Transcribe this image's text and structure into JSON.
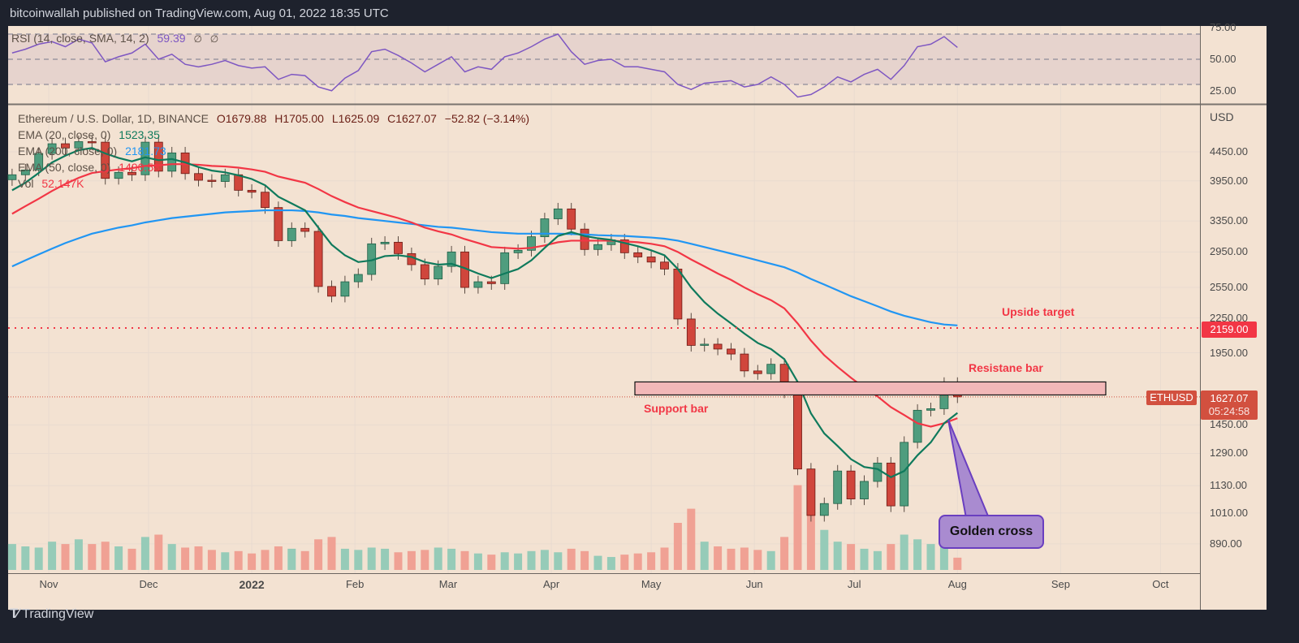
{
  "header": {
    "published": "bitcoinwallah published on TradingView.com, Aug 01, 2022 18:35 UTC"
  },
  "rsi_legend": {
    "label": "RSI (14, close, SMA, 14, 2)",
    "value": "59.39",
    "extra1": "∅",
    "extra2": "∅"
  },
  "legend": {
    "symbol": "Ethereum / U.S. Dollar, 1D, BINANCE",
    "open": "O1679.88",
    "high": "H1705.00",
    "low": "L1625.09",
    "close": "C1627.07",
    "change": "−52.82 (−3.14%)",
    "ema20_label": "EMA (20, close, 0)",
    "ema20_value": "1523.35",
    "ema200_label": "EMA (200, close, 0)",
    "ema200_value": "2181.73",
    "ema50_label": "EMA (50, close, 0)",
    "ema50_value": "1490.58",
    "vol_label": "Vol",
    "vol_value": "52.147K"
  },
  "price_axis": {
    "currency": "USD",
    "ticks": [
      "4450.00",
      "3950.00",
      "3350.00",
      "2950.00",
      "2550.00",
      "2250.00",
      "1950.00",
      "1450.00",
      "1290.00",
      "1130.00",
      "1010.00",
      "890.00"
    ]
  },
  "rsi_axis": {
    "ticks": [
      "75.00",
      "50.00",
      "25.00"
    ]
  },
  "time_axis": {
    "ticks": [
      {
        "label": "Nov",
        "date": "2021-11-01",
        "bold": false
      },
      {
        "label": "Dec",
        "date": "2021-12-01",
        "bold": false
      },
      {
        "label": "2022",
        "date": "2022-01-01",
        "bold": true
      },
      {
        "label": "Feb",
        "date": "2022-02-01",
        "bold": false
      },
      {
        "label": "Mar",
        "date": "2022-03-01",
        "bold": false
      },
      {
        "label": "Apr",
        "date": "2022-04-01",
        "bold": false
      },
      {
        "label": "May",
        "date": "2022-05-01",
        "bold": false
      },
      {
        "label": "Jun",
        "date": "2022-06-01",
        "bold": false
      },
      {
        "label": "Jul",
        "date": "2022-07-01",
        "bold": false
      },
      {
        "label": "Aug",
        "date": "2022-08-01",
        "bold": false
      },
      {
        "label": "Sep",
        "date": "2022-09-01",
        "bold": false
      },
      {
        "label": "Oct",
        "date": "2022-10-01",
        "bold": false
      }
    ]
  },
  "labels": {
    "target_price": "2159.00",
    "symbol_badge": "ETHUSD",
    "last_price": "1627.07",
    "countdown": "05:24:58"
  },
  "annotations": {
    "upside_target": "Upside target",
    "resistance": "Resistane bar",
    "support": "Support bar",
    "golden_cross": "Golden cross"
  },
  "logo": {
    "text": "TradingView"
  },
  "colors": {
    "up": "#4f9d7e",
    "down": "#d0463c",
    "ema20": "#0f7a5c",
    "ema50": "#f23645",
    "ema200": "#2196f3",
    "rsi": "#7e57c2",
    "background": "#f3e2d2",
    "frame": "#1e222d"
  },
  "chart_data": {
    "type": "candlestick",
    "title": "Ethereum / U.S. Dollar, 1D, BINANCE",
    "y_scale": "log",
    "ylim": [
      820,
      5200
    ],
    "xlim": [
      "2021-10-20",
      "2022-10-14"
    ],
    "grid": true,
    "target_line": 2159,
    "resistance_zone": [
      1640,
      1730
    ],
    "last_price_line": 1627.07,
    "dates": [
      "2021-10-21",
      "2021-10-25",
      "2021-10-29",
      "2021-11-02",
      "2021-11-06",
      "2021-11-10",
      "2021-11-14",
      "2021-11-18",
      "2021-11-22",
      "2021-11-26",
      "2021-11-30",
      "2021-12-04",
      "2021-12-08",
      "2021-12-12",
      "2021-12-16",
      "2021-12-20",
      "2021-12-24",
      "2021-12-28",
      "2022-01-01",
      "2022-01-05",
      "2022-01-09",
      "2022-01-13",
      "2022-01-17",
      "2022-01-21",
      "2022-01-25",
      "2022-01-29",
      "2022-02-02",
      "2022-02-06",
      "2022-02-10",
      "2022-02-14",
      "2022-02-18",
      "2022-02-22",
      "2022-02-26",
      "2022-03-02",
      "2022-03-06",
      "2022-03-10",
      "2022-03-14",
      "2022-03-18",
      "2022-03-22",
      "2022-03-26",
      "2022-03-30",
      "2022-04-03",
      "2022-04-07",
      "2022-04-11",
      "2022-04-15",
      "2022-04-19",
      "2022-04-23",
      "2022-04-27",
      "2022-05-01",
      "2022-05-05",
      "2022-05-09",
      "2022-05-13",
      "2022-05-17",
      "2022-05-21",
      "2022-05-25",
      "2022-05-29",
      "2022-06-02",
      "2022-06-06",
      "2022-06-10",
      "2022-06-14",
      "2022-06-18",
      "2022-06-22",
      "2022-06-26",
      "2022-06-30",
      "2022-07-04",
      "2022-07-08",
      "2022-07-12",
      "2022-07-16",
      "2022-07-20",
      "2022-07-24",
      "2022-07-28",
      "2022-08-01"
    ],
    "close": [
      4050,
      4130,
      4420,
      4600,
      4520,
      4640,
      4630,
      3990,
      4090,
      4050,
      4630,
      4110,
      4430,
      4070,
      3960,
      3940,
      4050,
      3800,
      3770,
      3540,
      3090,
      3250,
      3210,
      2560,
      2460,
      2610,
      2690,
      3050,
      3070,
      2930,
      2800,
      2640,
      2780,
      2950,
      2550,
      2610,
      2590,
      2940,
      2970,
      3140,
      3380,
      3520,
      3240,
      2980,
      3040,
      3100,
      2940,
      2890,
      2830,
      2750,
      2240,
      2010,
      2020,
      1980,
      1940,
      1810,
      1790,
      1860,
      1660,
      1210,
      1000,
      1050,
      1200,
      1070,
      1150,
      1240,
      1040,
      1350,
      1540,
      1550,
      1720,
      1627.07
    ],
    "volume_k": [
      110,
      100,
      95,
      120,
      110,
      130,
      110,
      120,
      100,
      90,
      140,
      150,
      110,
      95,
      100,
      85,
      75,
      80,
      70,
      85,
      100,
      90,
      80,
      130,
      140,
      90,
      85,
      95,
      90,
      75,
      80,
      85,
      95,
      90,
      80,
      70,
      65,
      75,
      70,
      80,
      85,
      75,
      90,
      80,
      60,
      55,
      65,
      70,
      75,
      95,
      200,
      260,
      120,
      100,
      90,
      95,
      85,
      80,
      140,
      360,
      300,
      170,
      120,
      110,
      90,
      80,
      110,
      150,
      130,
      110,
      100,
      52.147
    ],
    "ema20": [
      3800,
      3920,
      4080,
      4260,
      4380,
      4480,
      4520,
      4420,
      4340,
      4280,
      4350,
      4300,
      4320,
      4260,
      4180,
      4120,
      4090,
      4040,
      3980,
      3880,
      3700,
      3600,
      3500,
      3260,
      3040,
      2910,
      2830,
      2850,
      2900,
      2910,
      2890,
      2830,
      2800,
      2810,
      2760,
      2700,
      2650,
      2700,
      2750,
      2850,
      3000,
      3150,
      3200,
      3150,
      3120,
      3100,
      3060,
      3020,
      2970,
      2910,
      2750,
      2550,
      2400,
      2290,
      2200,
      2110,
      2030,
      1980,
      1900,
      1730,
      1520,
      1400,
      1330,
      1260,
      1220,
      1210,
      1170,
      1200,
      1280,
      1350,
      1460,
      1523.35
    ],
    "ema50": [
      3450,
      3560,
      3670,
      3790,
      3900,
      4000,
      4080,
      4110,
      4140,
      4160,
      4200,
      4210,
      4230,
      4230,
      4220,
      4200,
      4190,
      4170,
      4140,
      4100,
      4020,
      3970,
      3920,
      3820,
      3710,
      3620,
      3540,
      3490,
      3440,
      3390,
      3330,
      3260,
      3210,
      3170,
      3110,
      3060,
      3010,
      3000,
      2990,
      3000,
      3030,
      3070,
      3090,
      3090,
      3090,
      3090,
      3080,
      3070,
      3050,
      3020,
      2950,
      2860,
      2780,
      2700,
      2630,
      2550,
      2480,
      2420,
      2340,
      2200,
      2050,
      1930,
      1840,
      1760,
      1690,
      1630,
      1560,
      1510,
      1460,
      1440,
      1460,
      1490.58
    ],
    "ema200": [
      2780,
      2850,
      2920,
      2990,
      3060,
      3120,
      3180,
      3220,
      3260,
      3290,
      3330,
      3360,
      3390,
      3410,
      3430,
      3450,
      3470,
      3480,
      3490,
      3500,
      3500,
      3500,
      3490,
      3470,
      3440,
      3420,
      3390,
      3370,
      3350,
      3330,
      3310,
      3290,
      3270,
      3260,
      3240,
      3220,
      3200,
      3190,
      3180,
      3180,
      3180,
      3180,
      3175,
      3170,
      3160,
      3155,
      3150,
      3140,
      3130,
      3115,
      3090,
      3050,
      3010,
      2970,
      2930,
      2890,
      2850,
      2810,
      2770,
      2710,
      2640,
      2580,
      2520,
      2460,
      2410,
      2360,
      2310,
      2270,
      2240,
      2210,
      2190,
      2181.73
    ],
    "rsi": [
      55,
      58,
      62,
      64,
      60,
      66,
      63,
      48,
      52,
      55,
      62,
      50,
      54,
      46,
      44,
      46,
      49,
      45,
      43,
      44,
      34,
      38,
      37,
      28,
      25,
      35,
      41,
      56,
      58,
      53,
      47,
      40,
      46,
      52,
      40,
      44,
      42,
      52,
      55,
      60,
      66,
      70,
      56,
      46,
      49,
      50,
      44,
      44,
      42,
      40,
      30,
      26,
      31,
      32,
      33,
      28,
      30,
      36,
      30,
      20,
      22,
      28,
      36,
      32,
      38,
      42,
      34,
      45,
      60,
      62,
      68,
      59.39
    ],
    "rsi_levels": [
      30,
      50,
      70
    ]
  }
}
